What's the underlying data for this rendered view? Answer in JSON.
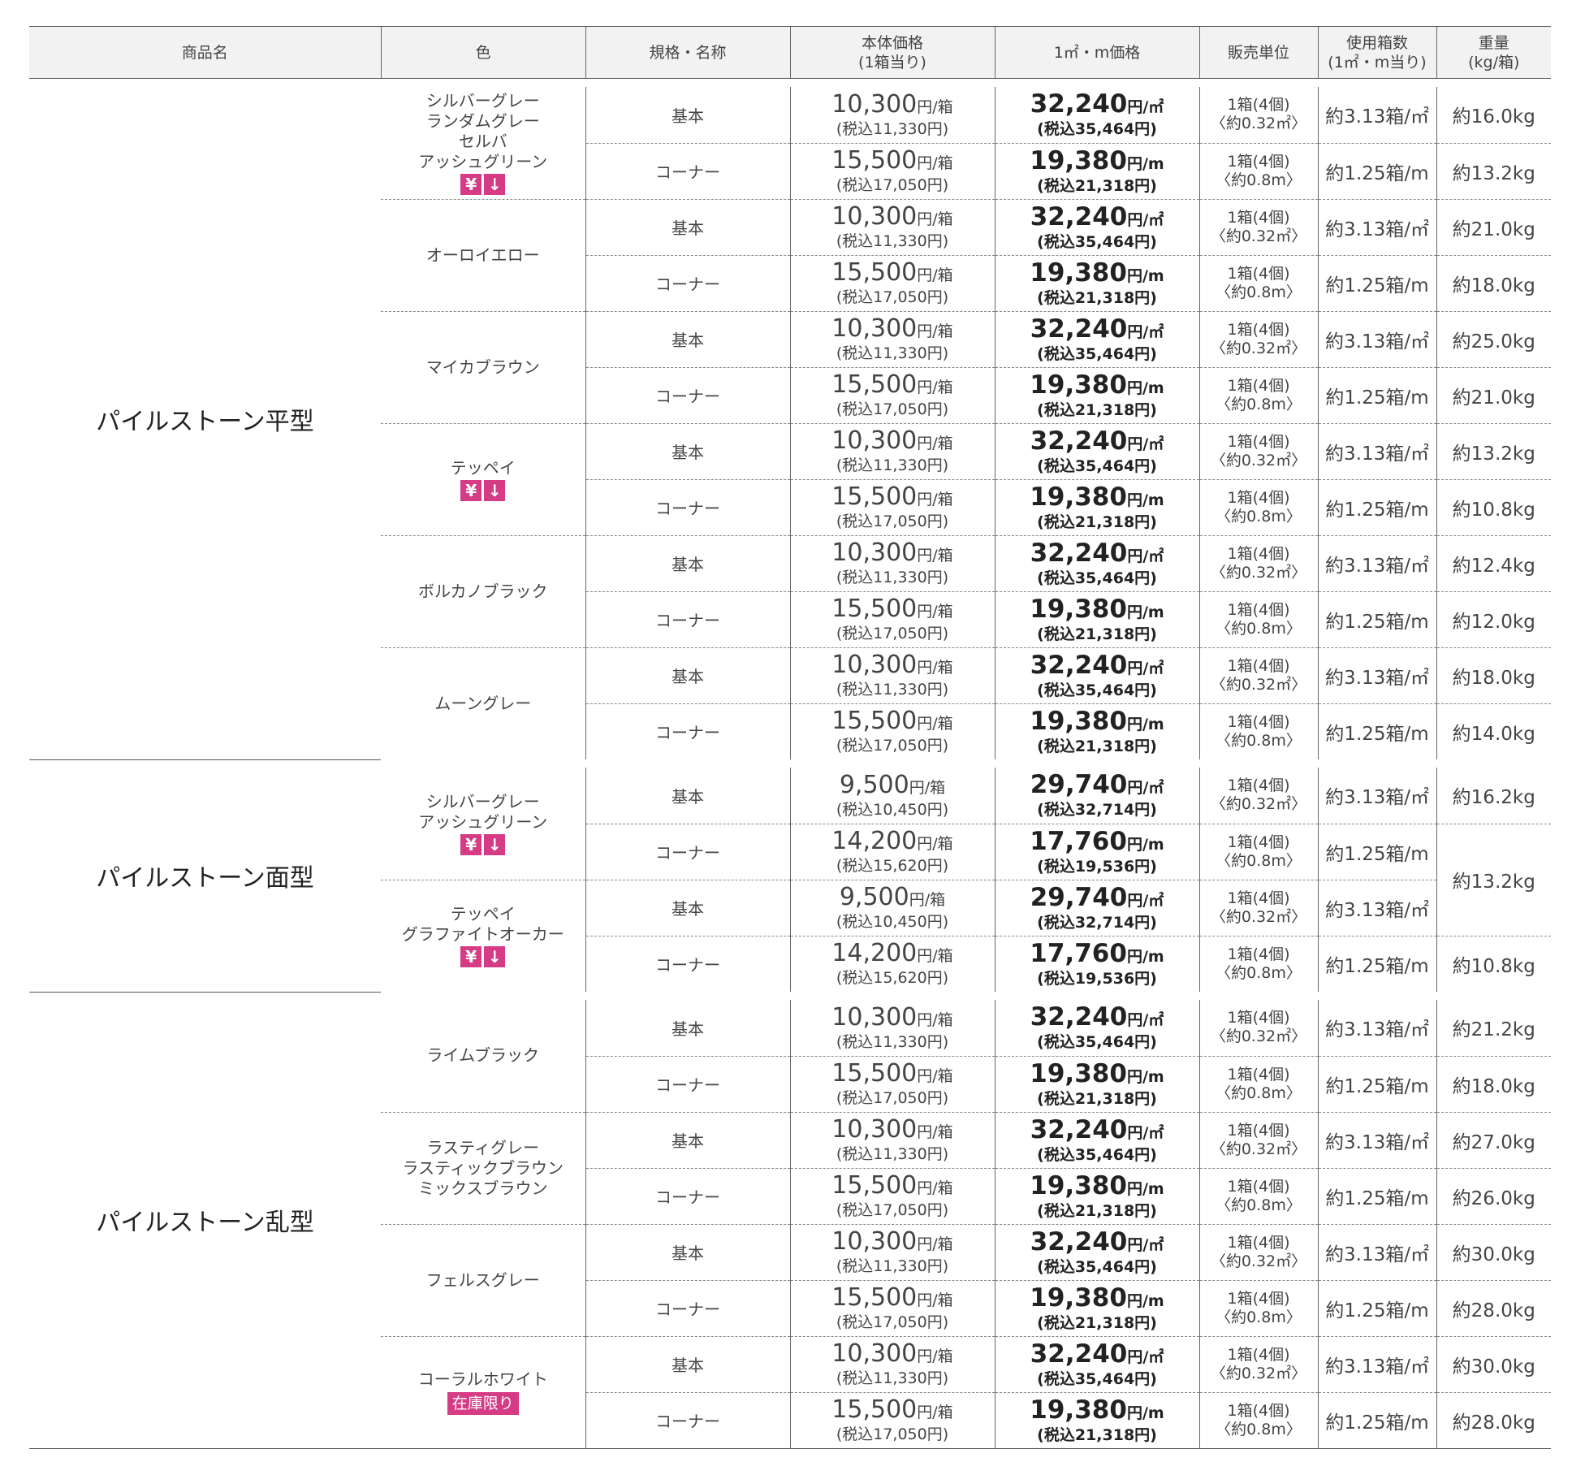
{
  "headers": {
    "product": "商品名",
    "color": "色",
    "spec": "規格・名称",
    "base_price": [
      "本体価格",
      "(1箱当り)"
    ],
    "unit_price": "1㎡・m価格",
    "sales_unit": "販売単位",
    "boxes": [
      "使用箱数",
      "(1㎡・m当り)"
    ],
    "weight": [
      "重量",
      "(kg/箱)"
    ]
  },
  "badges": {
    "price_down": [
      "¥",
      "↓"
    ],
    "stock_limited": "在庫限り"
  },
  "types": {
    "kihon": {
      "spec": "基本",
      "sales_unit": [
        "1箱(4個)",
        "〈約0.32㎡〉"
      ],
      "boxes": "約3.13箱/㎡",
      "m2_unit": "円/㎡"
    },
    "corner": {
      "spec": "コーナー",
      "sales_unit": [
        "1箱(4個)",
        "〈約0.8m〉"
      ],
      "boxes": "約1.25箱/m",
      "m2_unit": "円/m"
    }
  },
  "unit_per_box": "円/箱",
  "prices": {
    "standard": {
      "kihon": {
        "base": "10,300",
        "base_tax": "(税込11,330円)",
        "m2": "32,240",
        "m2_tax": "(税込35,464円)"
      },
      "corner": {
        "base": "15,500",
        "base_tax": "(税込17,050円)",
        "m2": "19,380",
        "m2_tax": "(税込21,318円)"
      }
    },
    "menkata": {
      "kihon": {
        "base": "9,500",
        "base_tax": "(税込10,450円)",
        "m2": "29,740",
        "m2_tax": "(税込32,714円)"
      },
      "corner": {
        "base": "14,200",
        "base_tax": "(税込15,620円)",
        "m2": "17,760",
        "m2_tax": "(税込19,536円)"
      }
    }
  },
  "products": [
    {
      "name": "パイルストーン平型",
      "prices": "standard",
      "colors": [
        {
          "names": [
            "シルバーグレー",
            "ランダムグレー",
            "セルバ",
            "アッシュグリーン"
          ],
          "badge": "price_down",
          "weights": [
            "約16.0kg",
            "約13.2kg"
          ]
        },
        {
          "names": [
            "オーロイエロー"
          ],
          "weights": [
            "約21.0kg",
            "約18.0kg"
          ]
        },
        {
          "names": [
            "マイカブラウン"
          ],
          "weights": [
            "約25.0kg",
            "約21.0kg"
          ]
        },
        {
          "names": [
            "テッペイ"
          ],
          "badge": "price_down",
          "weights": [
            "約13.2kg",
            "約10.8kg"
          ]
        },
        {
          "names": [
            "ボルカノブラック"
          ],
          "weights": [
            "約12.4kg",
            "約12.0kg"
          ]
        },
        {
          "names": [
            "ムーングレー"
          ],
          "weights": [
            "約18.0kg",
            "約14.0kg"
          ]
        }
      ]
    },
    {
      "name": "パイルストーン面型",
      "prices": "menkata",
      "colors": [
        {
          "names": [
            "シルバーグレー",
            "アッシュグリーン"
          ],
          "badge": "price_down",
          "weights": [
            "約16.2kg",
            null
          ]
        },
        {
          "names": [
            "テッペイ",
            "グラファイトオーカー"
          ],
          "badge": "price_down",
          "weights": [
            null,
            "約10.8kg"
          ]
        }
      ],
      "shared_weight": "約13.2kg"
    },
    {
      "name": "パイルストーン乱型",
      "prices": "standard",
      "colors": [
        {
          "names": [
            "ライムブラック"
          ],
          "weights": [
            "約21.2kg",
            "約18.0kg"
          ]
        },
        {
          "names": [
            "ラスティグレー",
            "ラスティックブラウン",
            "ミックスブラウン"
          ],
          "weights": [
            "約27.0kg",
            "約26.0kg"
          ]
        },
        {
          "names": [
            "フェルスグレー"
          ],
          "weights": [
            "約30.0kg",
            "約28.0kg"
          ]
        },
        {
          "names": [
            "コーラルホワイト"
          ],
          "badge": "stock_limited",
          "weights": [
            "約30.0kg",
            "約28.0kg"
          ]
        }
      ]
    }
  ]
}
